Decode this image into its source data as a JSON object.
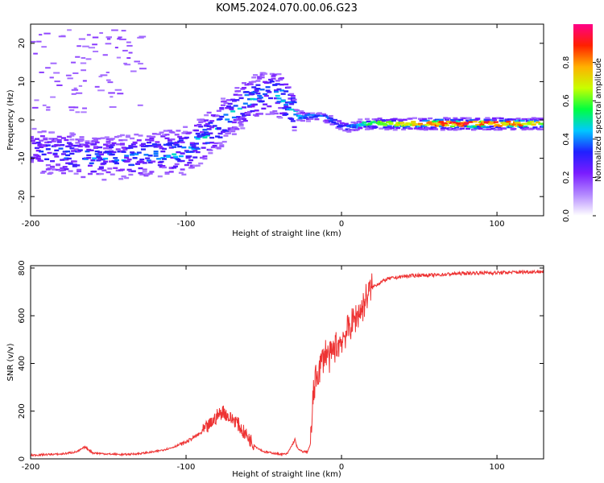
{
  "title": "KOM5.2024.070.00.06.G23",
  "chart_data": [
    {
      "type": "heatmap",
      "xlabel": "Height of straight line (km)",
      "ylabel": "Frequency (Hz)",
      "xlim": [
        -200,
        130
      ],
      "ylim": [
        -25,
        25
      ],
      "xticks": [
        -200,
        -100,
        0,
        100
      ],
      "yticks": [
        -20,
        -10,
        0,
        10,
        20
      ],
      "colorbar": {
        "label": "Normalized spectral amplitude",
        "range": [
          0,
          1
        ],
        "ticks": [
          "0.0",
          "0.2",
          "0.4",
          "0.6",
          "0.8"
        ],
        "tick_values": [
          0,
          0.2,
          0.4,
          0.6,
          0.8
        ],
        "colors": [
          "#ffffff",
          "#b388ff",
          "#7a1cff",
          "#2020ff",
          "#00c8ff",
          "#00ff40",
          "#c8ff00",
          "#ffb000",
          "#ff2000",
          "#ff0088"
        ]
      },
      "ridge": {
        "description_x": [
          -200,
          -180,
          -160,
          -140,
          -120,
          -100,
          -90,
          -80,
          -70,
          -60,
          -50,
          -42,
          -35,
          -28,
          -20,
          -10,
          0,
          5,
          15,
          30,
          50,
          80,
          100,
          130
        ],
        "frequency": [
          -8,
          -9,
          -10,
          -10,
          -9,
          -8,
          -5,
          -2,
          2,
          5,
          7,
          7,
          4,
          1,
          1,
          0.5,
          -1.5,
          -2,
          -1,
          -1,
          -1,
          -1,
          -1,
          -1
        ],
        "amplitude": [
          0.35,
          0.4,
          0.4,
          0.4,
          0.45,
          0.45,
          0.45,
          0.45,
          0.45,
          0.45,
          0.4,
          0.45,
          0.5,
          0.4,
          0.35,
          0.35,
          0.3,
          0.35,
          0.5,
          0.6,
          0.75,
          0.85,
          0.8,
          0.7
        ]
      }
    },
    {
      "type": "line",
      "xlabel": "Height of straight line (km)",
      "ylabel": "SNR (v/v)",
      "xlim": [
        -200,
        130
      ],
      "ylim": [
        0,
        810
      ],
      "xticks": [
        -200,
        -100,
        0,
        100
      ],
      "yticks": [
        0,
        200,
        400,
        600,
        800
      ],
      "series": [
        {
          "color": "#ee3333",
          "x": [
            -200,
            -190,
            -180,
            -170,
            -165,
            -160,
            -150,
            -140,
            -130,
            -120,
            -110,
            -100,
            -95,
            -90,
            -85,
            -80,
            -76,
            -72,
            -68,
            -64,
            -60,
            -55,
            -50,
            -45,
            -40,
            -35,
            -30,
            -28,
            -25,
            -22,
            -20,
            -18,
            -16,
            -14,
            -12,
            -10,
            -8,
            -6,
            -4,
            -2,
            0,
            2,
            4,
            6,
            8,
            10,
            12,
            14,
            16,
            18,
            20,
            25,
            30,
            35,
            40,
            50,
            60,
            70,
            80,
            90,
            100,
            110,
            120,
            130
          ],
          "y": [
            15,
            18,
            20,
            30,
            50,
            25,
            20,
            18,
            22,
            30,
            45,
            70,
            90,
            110,
            140,
            180,
            200,
            170,
            160,
            120,
            90,
            50,
            30,
            25,
            20,
            20,
            80,
            40,
            30,
            30,
            60,
            280,
            350,
            380,
            420,
            450,
            420,
            440,
            470,
            480,
            500,
            520,
            540,
            560,
            580,
            600,
            620,
            640,
            680,
            700,
            720,
            740,
            755,
            760,
            765,
            770,
            770,
            775,
            778,
            780,
            780,
            782,
            784,
            785
          ]
        }
      ]
    }
  ]
}
